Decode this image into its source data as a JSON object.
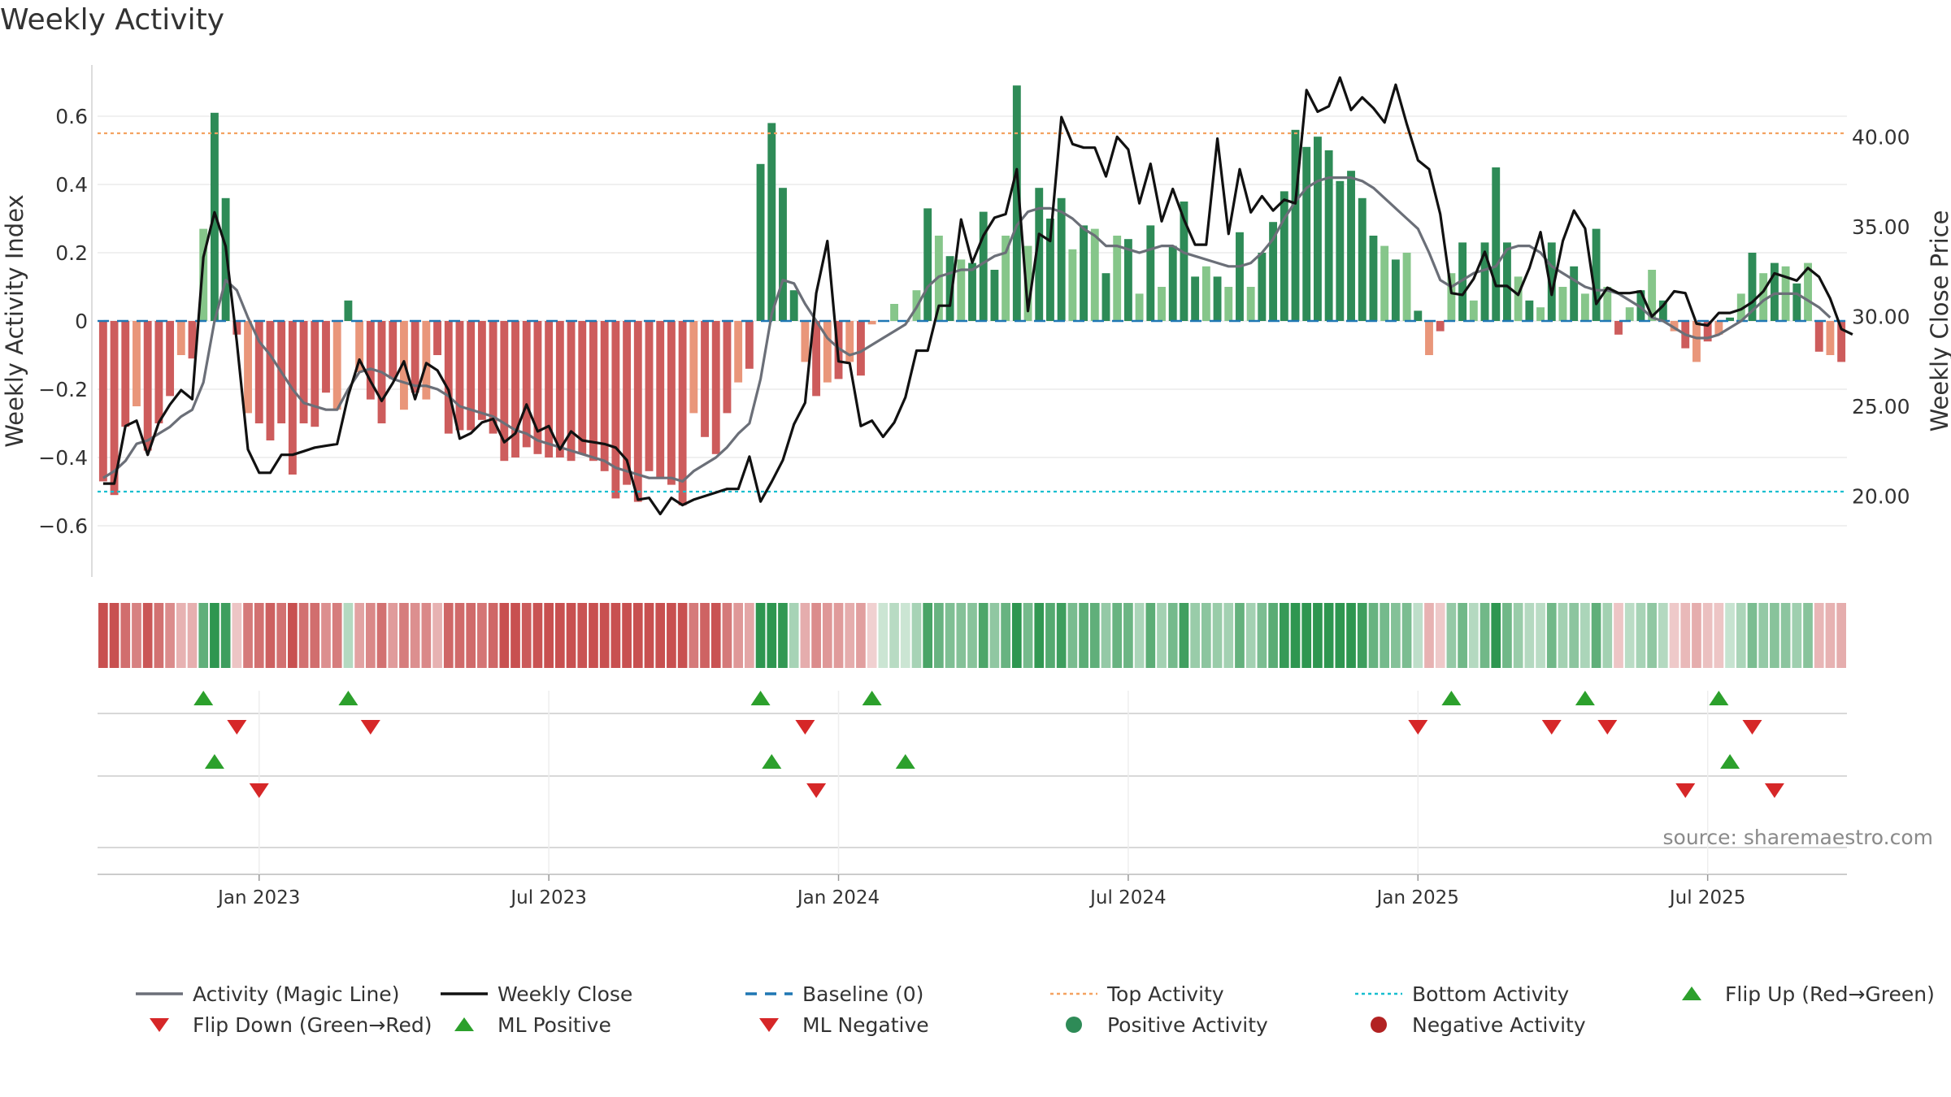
{
  "title": "Weekly Activity",
  "source_note": "source: sharemaestro.com",
  "colors": {
    "pos_dark": "#2e8b57",
    "pos_light": "#86c68a",
    "neg_dark": "#cd5c5c",
    "neg_light": "#e9967a",
    "magic": "#6b6f78",
    "close": "#111111",
    "baseline": "#1f77b4",
    "top": "#f4a261",
    "bottom": "#17becf",
    "up": "#2ca02c",
    "down": "#d62728"
  },
  "chart_data": {
    "type": "bar",
    "title": "Weekly Activity",
    "ylabel": "Weekly Activity Index",
    "y2label": "Weekly Close Price",
    "ylim": [
      -0.75,
      0.75
    ],
    "y2lim": [
      15.5,
      44
    ],
    "yticks": [
      0.6,
      0.4,
      0.2,
      0,
      -0.2,
      -0.4,
      -0.6
    ],
    "yticklabels": [
      "0.6",
      "0.4",
      "0.2",
      "0",
      "−0.2",
      "−0.4",
      "−0.6"
    ],
    "y2ticks": [
      40,
      35,
      30,
      25,
      20
    ],
    "y2ticklabels": [
      "40.00",
      "35.00",
      "30.00",
      "25.00",
      "20.00"
    ],
    "x_start": "2022-09-26",
    "x_interval_weeks": 1,
    "xticklabels": [
      "Jan 2023",
      "Jul 2023",
      "Jan 2024",
      "Jul 2024",
      "Jan 2025",
      "Jul 2025"
    ],
    "xtick_week_index": [
      14,
      40,
      66,
      92,
      118,
      144
    ],
    "activity": [
      -0.47,
      -0.51,
      -0.31,
      -0.25,
      -0.38,
      -0.3,
      -0.22,
      -0.1,
      -0.11,
      0.27,
      0.61,
      0.36,
      -0.04,
      -0.27,
      -0.3,
      -0.35,
      -0.3,
      -0.45,
      -0.3,
      -0.31,
      -0.21,
      -0.26,
      0.06,
      -0.15,
      -0.23,
      -0.3,
      -0.17,
      -0.26,
      -0.21,
      -0.23,
      -0.1,
      -0.33,
      -0.32,
      -0.32,
      -0.29,
      -0.33,
      -0.41,
      -0.4,
      -0.37,
      -0.39,
      -0.4,
      -0.4,
      -0.41,
      -0.39,
      -0.41,
      -0.44,
      -0.52,
      -0.48,
      -0.53,
      -0.44,
      -0.46,
      -0.48,
      -0.54,
      -0.27,
      -0.34,
      -0.39,
      -0.27,
      -0.18,
      -0.14,
      0.46,
      0.58,
      0.39,
      0.09,
      -0.12,
      -0.22,
      -0.18,
      -0.17,
      -0.12,
      -0.16,
      -0.01,
      0.0,
      0.05,
      0.0,
      0.09,
      0.33,
      0.25,
      0.19,
      0.18,
      0.17,
      0.32,
      0.15,
      0.25,
      0.69,
      0.22,
      0.39,
      0.3,
      0.36,
      0.21,
      0.28,
      0.27,
      0.14,
      0.25,
      0.24,
      0.08,
      0.28,
      0.1,
      0.22,
      0.35,
      0.13,
      0.16,
      0.13,
      0.1,
      0.26,
      0.1,
      0.2,
      0.29,
      0.38,
      0.56,
      0.51,
      0.54,
      0.5,
      0.41,
      0.44,
      0.36,
      0.25,
      0.22,
      0.18,
      0.2,
      0.03,
      -0.1,
      -0.03,
      0.14,
      0.23,
      0.06,
      0.23,
      0.45,
      0.23,
      0.13,
      0.06,
      0.04,
      0.23,
      0.1,
      0.16,
      0.08,
      0.27,
      0.1,
      -0.04,
      0.04,
      0.09,
      0.15,
      0.06,
      -0.03,
      -0.08,
      -0.12,
      -0.06,
      -0.04,
      0.01,
      0.08,
      0.2,
      0.14,
      0.17,
      0.16,
      0.11,
      0.17,
      -0.09,
      -0.1,
      -0.12
    ],
    "magic_line": [
      -0.46,
      -0.44,
      -0.41,
      -0.36,
      -0.35,
      -0.33,
      -0.31,
      -0.28,
      -0.26,
      -0.18,
      0.0,
      0.12,
      0.09,
      0.01,
      -0.06,
      -0.1,
      -0.15,
      -0.2,
      -0.24,
      -0.25,
      -0.26,
      -0.26,
      -0.2,
      -0.15,
      -0.14,
      -0.15,
      -0.17,
      -0.18,
      -0.19,
      -0.19,
      -0.2,
      -0.22,
      -0.25,
      -0.26,
      -0.27,
      -0.28,
      -0.3,
      -0.32,
      -0.33,
      -0.35,
      -0.36,
      -0.37,
      -0.38,
      -0.39,
      -0.4,
      -0.41,
      -0.43,
      -0.44,
      -0.45,
      -0.46,
      -0.46,
      -0.46,
      -0.47,
      -0.44,
      -0.42,
      -0.4,
      -0.37,
      -0.33,
      -0.3,
      -0.17,
      0.02,
      0.12,
      0.11,
      0.05,
      0.0,
      -0.05,
      -0.08,
      -0.1,
      -0.09,
      -0.07,
      -0.05,
      -0.03,
      -0.01,
      0.04,
      0.1,
      0.13,
      0.14,
      0.15,
      0.15,
      0.17,
      0.19,
      0.2,
      0.28,
      0.32,
      0.33,
      0.33,
      0.32,
      0.3,
      0.27,
      0.25,
      0.22,
      0.22,
      0.21,
      0.2,
      0.21,
      0.22,
      0.22,
      0.2,
      0.19,
      0.18,
      0.17,
      0.16,
      0.16,
      0.17,
      0.2,
      0.24,
      0.3,
      0.35,
      0.39,
      0.41,
      0.42,
      0.42,
      0.42,
      0.41,
      0.39,
      0.36,
      0.33,
      0.3,
      0.27,
      0.2,
      0.12,
      0.1,
      0.12,
      0.14,
      0.15,
      0.16,
      0.21,
      0.22,
      0.22,
      0.2,
      0.16,
      0.14,
      0.12,
      0.1,
      0.09,
      0.09,
      0.08,
      0.06,
      0.04,
      0.01,
      0.0,
      -0.02,
      -0.04,
      -0.05,
      -0.05,
      -0.04,
      -0.02,
      0.0,
      0.03,
      0.06,
      0.08,
      0.08,
      0.08,
      0.06,
      0.04,
      0.01
    ],
    "weekly_close": [
      20.7,
      20.7,
      23.9,
      24.2,
      22.3,
      24.1,
      25.1,
      25.9,
      25.4,
      33.3,
      35.8,
      33.9,
      28.6,
      22.6,
      21.3,
      21.3,
      22.3,
      22.3,
      22.5,
      22.7,
      22.8,
      22.9,
      25.6,
      27.6,
      26.4,
      25.3,
      26.3,
      27.5,
      25.4,
      27.4,
      27.0,
      25.9,
      23.2,
      23.5,
      24.1,
      24.3,
      23.0,
      23.5,
      25.1,
      23.6,
      23.9,
      22.6,
      23.6,
      23.1,
      23.0,
      22.9,
      22.7,
      22.0,
      19.8,
      19.9,
      19.0,
      19.9,
      19.5,
      19.8,
      20.0,
      20.2,
      20.4,
      20.4,
      22.2,
      19.7,
      20.8,
      22.0,
      24.0,
      25.2,
      31.3,
      34.2,
      27.5,
      27.4,
      23.9,
      24.2,
      23.3,
      24.1,
      25.5,
      28.1,
      28.1,
      30.6,
      30.6,
      35.4,
      33.0,
      34.5,
      35.5,
      35.7,
      38.2,
      30.3,
      34.6,
      34.2,
      41.1,
      39.6,
      39.4,
      39.4,
      37.8,
      40.0,
      39.3,
      36.3,
      38.5,
      35.3,
      37.1,
      35.4,
      34.0,
      34.0,
      39.9,
      34.6,
      38.2,
      35.8,
      36.7,
      35.9,
      36.5,
      36.3,
      42.6,
      41.4,
      41.7,
      43.3,
      41.5,
      42.2,
      41.6,
      40.8,
      42.9,
      40.7,
      38.7,
      38.2,
      35.7,
      31.3,
      31.2,
      32.1,
      33.6,
      31.7,
      31.7,
      31.2,
      32.7,
      34.7,
      31.2,
      34.2,
      35.9,
      34.9,
      30.7,
      31.6,
      31.3,
      31.3,
      31.4,
      30.0,
      30.6,
      31.4,
      31.3,
      29.6,
      29.5,
      30.2,
      30.2,
      30.4,
      30.8,
      31.4,
      32.4,
      32.2,
      32.0,
      32.7,
      32.2,
      31.0,
      29.3,
      29.0
    ],
    "top_activity": 0.55,
    "bottom_activity": -0.5,
    "baseline": 0,
    "heat_strip": "weekly activity color strip (same series as activity)",
    "flip_up_weeks": [
      9,
      22,
      59,
      69,
      121,
      133,
      145
    ],
    "flip_down_weeks": [
      12,
      24,
      63,
      118,
      130,
      135,
      148
    ],
    "ml_positive_weeks": [
      10,
      60,
      72,
      146
    ],
    "ml_negative_weeks": [
      14,
      64,
      142,
      150
    ],
    "legend": [
      {
        "label": "Activity (Magic Line)",
        "kind": "line",
        "color": "#6b6f78"
      },
      {
        "label": "Weekly Close",
        "kind": "line",
        "color": "#111111"
      },
      {
        "label": "Baseline (0)",
        "kind": "dash",
        "color": "#1f77b4"
      },
      {
        "label": "Top Activity",
        "kind": "dot",
        "color": "#f4a261"
      },
      {
        "label": "Bottom Activity",
        "kind": "dot",
        "color": "#17becf"
      },
      {
        "label": "Flip Up (Red→Green)",
        "kind": "tri-up",
        "color": "#2ca02c"
      },
      {
        "label": "Flip Down (Green→Red)",
        "kind": "tri-down",
        "color": "#d62728"
      },
      {
        "label": "ML Positive",
        "kind": "tri-up",
        "color": "#2ca02c"
      },
      {
        "label": "ML Negative",
        "kind": "tri-down",
        "color": "#d62728"
      },
      {
        "label": "Positive Activity",
        "kind": "circle",
        "color": "#2e8b57"
      },
      {
        "label": "Negative Activity",
        "kind": "circle",
        "color": "#b22222"
      }
    ]
  }
}
